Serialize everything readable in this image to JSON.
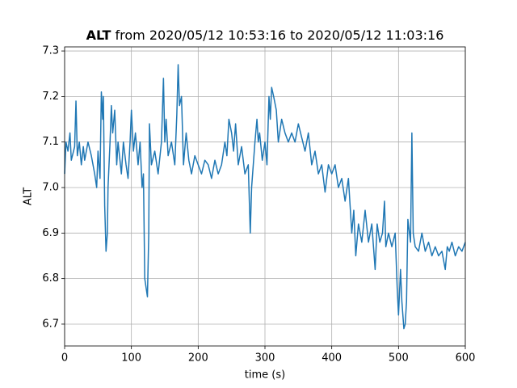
{
  "chart_data": {
    "type": "line",
    "title": [
      "ALT",
      "from 2020/05/12 10:53:16 to 2020/05/12 11:03:16"
    ],
    "x_label": "time (s)",
    "y_label": "ALT",
    "color": "#1f77b4",
    "grid": true,
    "xlim": [
      0,
      600
    ],
    "xticks": [
      0,
      100,
      200,
      300,
      400,
      500,
      600
    ],
    "ylim": [
      6.652,
      7.309
    ],
    "yticks": [
      6.7,
      6.8,
      6.9,
      {
        "value": 7.0,
        "label": "7.0"
      },
      7.1,
      7.2,
      7.3
    ],
    "x": [
      0,
      2,
      5,
      8,
      10,
      15,
      17,
      19,
      22,
      25,
      28,
      30,
      35,
      40,
      45,
      48,
      50,
      53,
      55,
      57,
      58,
      60,
      62,
      64,
      65,
      68,
      70,
      72,
      75,
      78,
      80,
      85,
      88,
      92,
      95,
      98,
      100,
      103,
      106,
      110,
      113,
      116,
      118,
      120,
      122,
      124,
      126,
      127,
      130,
      135,
      140,
      145,
      148,
      150,
      152,
      155,
      160,
      165,
      168,
      170,
      172,
      175,
      178,
      182,
      186,
      190,
      195,
      200,
      205,
      210,
      215,
      220,
      225,
      230,
      235,
      240,
      243,
      246,
      250,
      253,
      256,
      260,
      265,
      270,
      275,
      278,
      280,
      285,
      288,
      290,
      292,
      296,
      300,
      303,
      306,
      308,
      310,
      313,
      317,
      320,
      325,
      330,
      335,
      340,
      345,
      350,
      355,
      360,
      365,
      370,
      375,
      380,
      385,
      390,
      395,
      400,
      405,
      410,
      415,
      420,
      425,
      430,
      433,
      436,
      440,
      445,
      450,
      455,
      460,
      465,
      468,
      472,
      476,
      479,
      481,
      485,
      490,
      495,
      498,
      500,
      503,
      505,
      508,
      510,
      512,
      514,
      518,
      520,
      522,
      525,
      530,
      535,
      540,
      545,
      550,
      555,
      560,
      565,
      570,
      573,
      576,
      580,
      585,
      590,
      595,
      600
    ],
    "values": [
      7.03,
      7.1,
      7.08,
      7.12,
      7.06,
      7.09,
      7.19,
      7.07,
      7.1,
      7.05,
      7.09,
      7.06,
      7.1,
      7.07,
      7.03,
      7.0,
      7.08,
      7.02,
      7.21,
      7.15,
      7.2,
      6.96,
      6.86,
      6.9,
      7.0,
      7.1,
      7.18,
      7.12,
      7.17,
      7.05,
      7.1,
      7.03,
      7.1,
      7.05,
      7.02,
      7.1,
      7.17,
      7.08,
      7.12,
      7.05,
      7.1,
      7.0,
      7.03,
      6.8,
      6.78,
      6.76,
      6.9,
      7.14,
      7.05,
      7.08,
      7.03,
      7.1,
      7.24,
      7.1,
      7.15,
      7.07,
      7.1,
      7.05,
      7.16,
      7.27,
      7.18,
      7.2,
      7.05,
      7.12,
      7.06,
      7.03,
      7.07,
      7.05,
      7.03,
      7.06,
      7.05,
      7.02,
      7.06,
      7.03,
      7.05,
      7.1,
      7.07,
      7.15,
      7.12,
      7.08,
      7.14,
      7.05,
      7.09,
      7.03,
      7.05,
      6.9,
      7.0,
      7.1,
      7.15,
      7.1,
      7.12,
      7.06,
      7.1,
      7.05,
      7.2,
      7.15,
      7.22,
      7.2,
      7.17,
      7.1,
      7.15,
      7.12,
      7.1,
      7.12,
      7.1,
      7.14,
      7.11,
      7.08,
      7.12,
      7.05,
      7.08,
      7.03,
      7.05,
      6.99,
      7.05,
      7.03,
      7.05,
      7.0,
      7.02,
      6.97,
      7.02,
      6.9,
      6.95,
      6.85,
      6.92,
      6.88,
      6.95,
      6.88,
      6.92,
      6.82,
      6.92,
      6.88,
      6.9,
      6.97,
      6.87,
      6.9,
      6.87,
      6.9,
      6.78,
      6.72,
      6.82,
      6.75,
      6.69,
      6.7,
      6.75,
      6.93,
      6.88,
      7.12,
      6.9,
      6.87,
      6.86,
      6.9,
      6.86,
      6.88,
      6.85,
      6.87,
      6.85,
      6.86,
      6.82,
      6.87,
      6.86,
      6.88,
      6.85,
      6.87,
      6.86,
      6.88
    ]
  }
}
